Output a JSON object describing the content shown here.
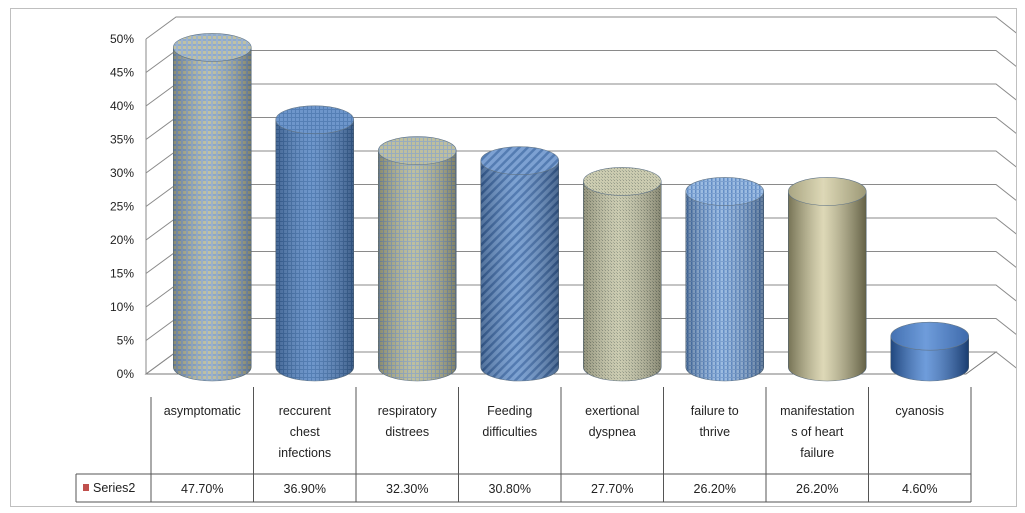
{
  "chart_data": {
    "type": "bar",
    "style": "3d-cylinder",
    "categories": [
      [
        "asymptomatic"
      ],
      [
        "reccurent",
        "chest",
        "infections"
      ],
      [
        "respiratory",
        "distrees"
      ],
      [
        "Feeding",
        "difficulties"
      ],
      [
        "exertional",
        "dyspnea"
      ],
      [
        "failure to",
        "thrive"
      ],
      [
        "manifestation",
        "s of heart",
        "failure"
      ],
      [
        "cyanosis"
      ]
    ],
    "series": [
      {
        "name": "Series2",
        "values": [
          47.7,
          36.9,
          32.3,
          30.8,
          27.7,
          26.2,
          26.2,
          4.6
        ],
        "value_labels": [
          "47.70%",
          "36.90%",
          "32.30%",
          "30.80%",
          "27.70%",
          "26.20%",
          "26.20%",
          "4.60%"
        ]
      }
    ],
    "yticks": [
      "0%",
      "5%",
      "10%",
      "15%",
      "20%",
      "25%",
      "30%",
      "35%",
      "40%",
      "45%",
      "50%"
    ],
    "ylim": [
      0,
      50
    ],
    "grid": true,
    "legend": "data-table-left",
    "bar_colors": [
      "#9fb7c9",
      "#4f81bd",
      "#b8b890",
      "#4f81bd",
      "#c4c4a6",
      "#7ea6d6",
      "#c9c39a",
      "#3a72c4"
    ],
    "bar_patterns": [
      "plaid",
      "grid",
      "grid",
      "diagonal",
      "fine",
      "stripe",
      "solid",
      "solid"
    ]
  }
}
